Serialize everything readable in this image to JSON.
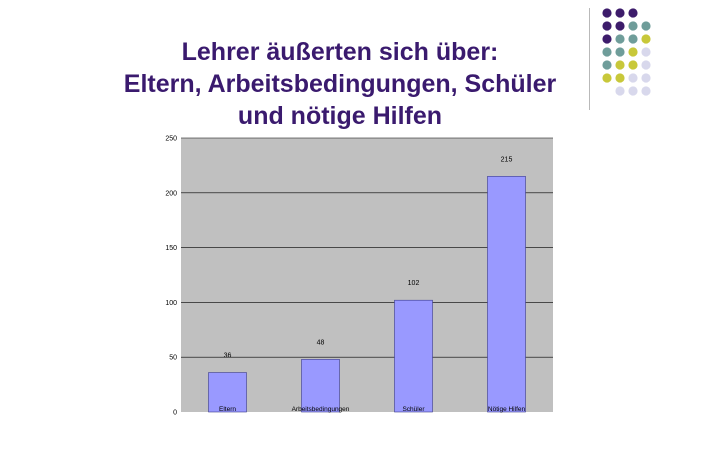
{
  "slide": {
    "title_lines": [
      "Lehrer äußerten sich über:",
      "Eltern, Arbeitsbedingungen, Schüler",
      "und nötige Hilfen"
    ]
  },
  "colors": {
    "title": "#3a1a6e",
    "bar": "#9999ff",
    "bar_stroke": "#3a3a8a",
    "plot_background": "#c0c0c0",
    "gridline": "#000000",
    "dot_purple": "#3d1c6b",
    "dot_teal": "#6f9d9a",
    "dot_yellow": "#c8c83a",
    "dot_lavender": "#d8d8ec"
  },
  "chart_data": {
    "type": "bar",
    "categories": [
      "Eltern",
      "Arbeitsbedingungen",
      "Schüler",
      "Nötige Hilfen"
    ],
    "values": [
      36,
      48,
      102,
      215
    ],
    "data_labels": [
      "36",
      "48",
      "102",
      "215"
    ],
    "ylim": [
      0,
      250
    ],
    "yticks": [
      0,
      50,
      100,
      150,
      200,
      250
    ],
    "ytick_labels": [
      "0",
      "50",
      "100",
      "150",
      "200",
      "250"
    ],
    "title": "",
    "xlabel": "",
    "ylabel": "",
    "grid": true,
    "legend": "none"
  }
}
